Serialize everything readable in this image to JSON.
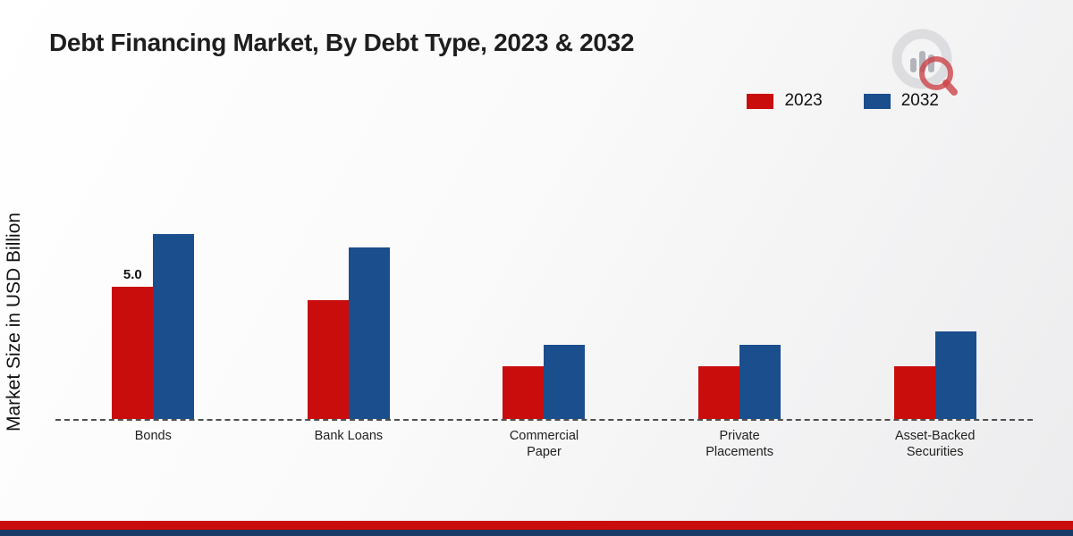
{
  "title": "Debt Financing Market, By Debt Type, 2023 & 2032",
  "ylabel": "Market Size in USD Billion",
  "legend": [
    {
      "label": "2023",
      "color": "#c90d0d"
    },
    {
      "label": "2032",
      "color": "#1b4e8c"
    }
  ],
  "chart_data": {
    "type": "bar",
    "categories": [
      "Bonds",
      "Bank Loans",
      "Commercial Paper",
      "Private Placements",
      "Asset-Backed Securities"
    ],
    "series": [
      {
        "name": "2023",
        "color": "#c90d0d",
        "values": [
          5.0,
          4.5,
          2.0,
          2.0,
          2.0
        ]
      },
      {
        "name": "2032",
        "color": "#1b4e8c",
        "values": [
          7.0,
          6.5,
          2.8,
          2.8,
          3.3
        ]
      }
    ],
    "bar_labels": [
      {
        "series": "2023",
        "category": "Bonds",
        "text": "5.0"
      }
    ],
    "xlabel": "",
    "ylim": [
      0,
      7.5
    ],
    "grid": false,
    "legend_position": "top-right",
    "baseline_style": "dashed"
  },
  "footer": {
    "red_color": "#c90d0d",
    "navy_color": "#173a66"
  }
}
